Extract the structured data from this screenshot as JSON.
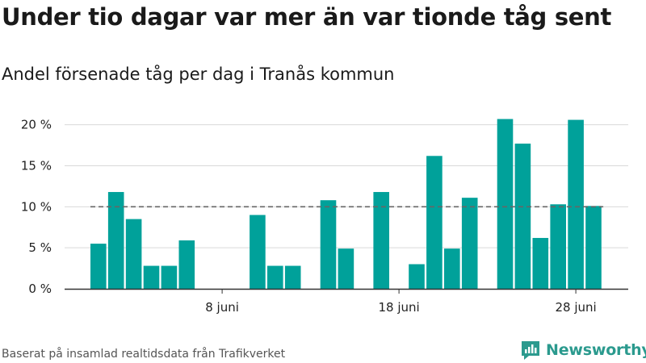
{
  "title": "Under tio dagar var mer än var tionde tåg sent",
  "subtitle": "Andel försenade tåg per dag i Tranås kommun",
  "source": "Baserat på insamlad realtidsdata från Trafikverket",
  "logo": {
    "text": "Newsworthy",
    "icon": "newsworthy-logo-icon"
  },
  "colors": {
    "bar": "#00a19a",
    "reference_line": "#666666",
    "grid": "#d9d9d9",
    "axis": "#333333",
    "logo": "#2b9a8e"
  },
  "chart_data": {
    "type": "bar",
    "x": [
      "1 juni",
      "2 juni",
      "3 juni",
      "4 juni",
      "5 juni",
      "6 juni",
      "7 juni",
      "8 juni",
      "9 juni",
      "10 juni",
      "11 juni",
      "12 juni",
      "13 juni",
      "14 juni",
      "15 juni",
      "16 juni",
      "17 juni",
      "18 juni",
      "19 juni",
      "20 juni",
      "21 juni",
      "22 juni",
      "23 juni",
      "24 juni",
      "25 juni",
      "26 juni",
      "27 juni",
      "28 juni",
      "29 juni"
    ],
    "values": [
      5.5,
      11.8,
      8.5,
      2.8,
      2.8,
      5.9,
      0,
      0,
      0,
      9.0,
      2.8,
      2.8,
      0,
      10.8,
      4.9,
      0,
      11.8,
      0,
      3.0,
      16.2,
      4.9,
      11.1,
      0,
      20.7,
      17.7,
      6.2,
      10.3,
      20.6,
      10.1
    ],
    "ylim": [
      0,
      21
    ],
    "yticks": [
      0,
      5,
      10,
      15,
      20
    ],
    "ytick_labels": [
      "0 %",
      "5 %",
      "10 %",
      "15 %",
      "20 %"
    ],
    "xticks": [
      "8 juni",
      "18 juni",
      "28 juni"
    ],
    "reference_line": {
      "y": 10,
      "style": "dashed"
    },
    "grid": "horizontal",
    "xlabel": "",
    "ylabel": ""
  }
}
